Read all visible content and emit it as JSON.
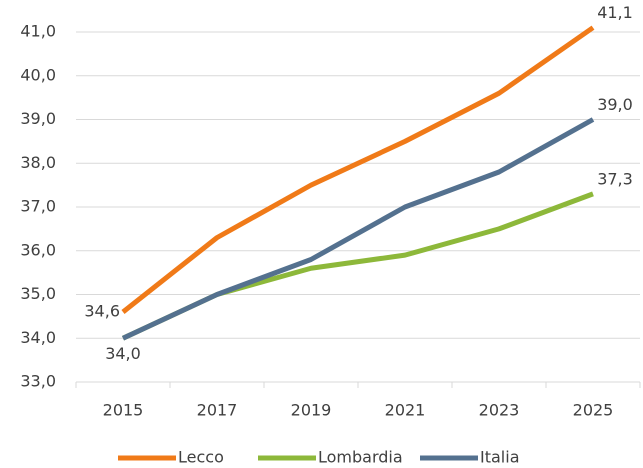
{
  "chart_data": {
    "type": "line",
    "categories": [
      "2015",
      "2017",
      "2019",
      "2021",
      "2023",
      "2025"
    ],
    "series": [
      {
        "name": "Lecco",
        "color": "#f07a18",
        "values": [
          34.6,
          36.3,
          37.5,
          38.5,
          39.6,
          41.1
        ],
        "value_labels": [
          "34,6",
          null,
          null,
          null,
          null,
          "41,1"
        ]
      },
      {
        "name": "Lombardia",
        "color": "#8db83a",
        "values": [
          34.0,
          35.0,
          35.6,
          35.9,
          36.5,
          37.3
        ],
        "value_labels": [
          null,
          null,
          null,
          null,
          null,
          "37,3"
        ]
      },
      {
        "name": "Italia",
        "color": "#54718f",
        "values": [
          34.0,
          35.0,
          35.8,
          37.0,
          37.8,
          39.0
        ],
        "value_labels": [
          "34,0",
          null,
          null,
          null,
          null,
          "39,0"
        ]
      }
    ],
    "ylim": [
      33,
      41
    ],
    "yticks": [
      {
        "value": 33,
        "label": "33,0"
      },
      {
        "value": 34,
        "label": "34,0"
      },
      {
        "value": 35,
        "label": "35,0"
      },
      {
        "value": 36,
        "label": "36,0"
      },
      {
        "value": 37,
        "label": "37,0"
      },
      {
        "value": 38,
        "label": "38,0"
      },
      {
        "value": 39,
        "label": "39,0"
      },
      {
        "value": 40,
        "label": "40,0"
      },
      {
        "value": 41,
        "label": "41,0"
      }
    ],
    "grid": true,
    "legend": "bottom"
  }
}
